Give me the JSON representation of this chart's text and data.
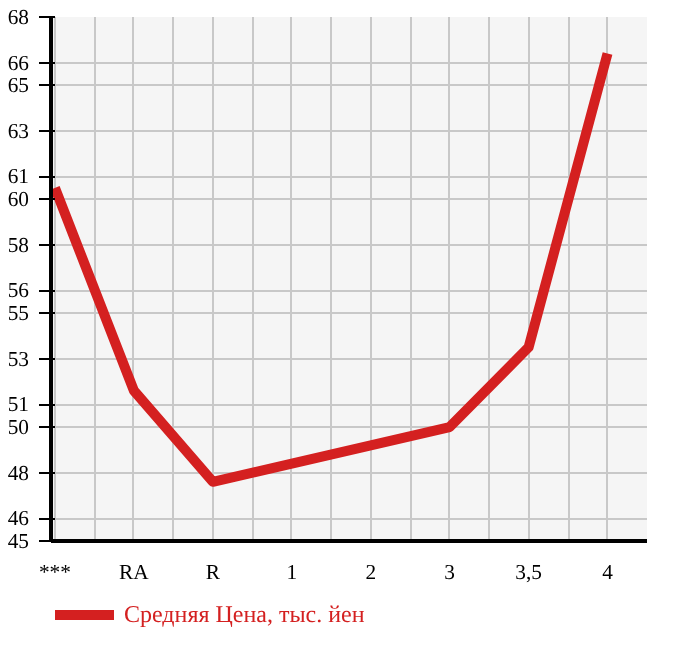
{
  "chart_data": {
    "type": "line",
    "categories": [
      "***",
      "RA",
      "R",
      "1",
      "2",
      "3",
      "3,5",
      "4"
    ],
    "series": [
      {
        "name": "Средняя Цена, тыс. йен",
        "color": "#d42020",
        "values": [
          60.5,
          51.6,
          47.6,
          48.4,
          49.2,
          50.0,
          53.5,
          66.4
        ]
      }
    ],
    "ylim": [
      45,
      68
    ],
    "yticks": [
      45,
      46,
      48,
      50,
      51,
      53,
      55,
      56,
      58,
      60,
      61,
      63,
      65,
      66,
      68
    ],
    "grid": true,
    "legend": "bottom",
    "marker": "none",
    "line_style": "solid"
  }
}
